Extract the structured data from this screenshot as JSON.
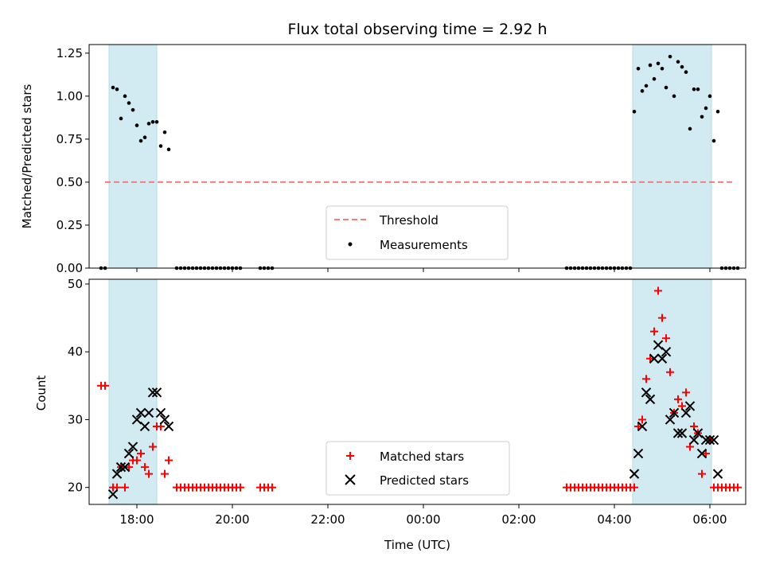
{
  "chart_data": {
    "type": "scatter",
    "title": "Flux total observing time = 2.92 h",
    "xlabel": "Time (UTC)",
    "x_unit": "hours",
    "xlim": [
      "17:00",
      "30:45"
    ],
    "x_tick_labels": [
      "18:00",
      "20:00",
      "22:00",
      "00:00",
      "02:00",
      "04:00",
      "06:00"
    ],
    "x_ticks": [
      "18:00",
      "20:00",
      "22:00",
      "24:00",
      "26:00",
      "28:00",
      "30:00"
    ],
    "shaded_intervals": [
      [
        "17:25",
        "18:25"
      ],
      [
        "28:23",
        "30:02"
      ]
    ],
    "shade_color": "#add8e6",
    "panels": [
      {
        "name": "ratio",
        "ylabel": "Matched/Predicted stars",
        "ylim": [
          0,
          1.3
        ],
        "yticks": [
          0.0,
          0.25,
          0.5,
          0.75,
          1.0,
          1.25
        ],
        "ytick_labels": [
          "0.00",
          "0.25",
          "0.50",
          "0.75",
          "1.00",
          "1.25"
        ],
        "threshold": {
          "label": "Threshold",
          "value": 0.5,
          "x_range": [
            "17:20",
            "30:30"
          ],
          "color": "#f08080"
        },
        "measurements": {
          "label": "Measurements",
          "color": "#000000",
          "points": [
            [
              "17:15",
              0
            ],
            [
              "17:20",
              0
            ],
            [
              "17:30",
              1.05
            ],
            [
              "17:35",
              1.04
            ],
            [
              "17:40",
              0.87
            ],
            [
              "17:45",
              1.0
            ],
            [
              "17:50",
              0.96
            ],
            [
              "17:55",
              0.92
            ],
            [
              "18:00",
              0.83
            ],
            [
              "18:05",
              0.74
            ],
            [
              "18:10",
              0.76
            ],
            [
              "18:15",
              0.84
            ],
            [
              "18:20",
              0.85
            ],
            [
              "18:25",
              0.85
            ],
            [
              "18:30",
              0.71
            ],
            [
              "18:35",
              0.79
            ],
            [
              "18:40",
              0.69
            ],
            [
              "18:50",
              0
            ],
            [
              "18:55",
              0
            ],
            [
              "19:00",
              0
            ],
            [
              "19:05",
              0
            ],
            [
              "19:10",
              0
            ],
            [
              "19:15",
              0
            ],
            [
              "19:20",
              0
            ],
            [
              "19:25",
              0
            ],
            [
              "19:30",
              0
            ],
            [
              "19:35",
              0
            ],
            [
              "19:40",
              0
            ],
            [
              "19:45",
              0
            ],
            [
              "19:50",
              0
            ],
            [
              "19:55",
              0
            ],
            [
              "20:00",
              0
            ],
            [
              "20:05",
              0
            ],
            [
              "20:10",
              0
            ],
            [
              "20:35",
              0
            ],
            [
              "20:40",
              0
            ],
            [
              "20:45",
              0
            ],
            [
              "20:50",
              0
            ],
            [
              "27:00",
              0
            ],
            [
              "27:05",
              0
            ],
            [
              "27:10",
              0
            ],
            [
              "27:15",
              0
            ],
            [
              "27:20",
              0
            ],
            [
              "27:25",
              0
            ],
            [
              "27:30",
              0
            ],
            [
              "27:35",
              0
            ],
            [
              "27:40",
              0
            ],
            [
              "27:45",
              0
            ],
            [
              "27:50",
              0
            ],
            [
              "27:55",
              0
            ],
            [
              "28:00",
              0
            ],
            [
              "28:05",
              0
            ],
            [
              "28:10",
              0
            ],
            [
              "28:15",
              0
            ],
            [
              "28:20",
              0
            ],
            [
              "28:25",
              0.91
            ],
            [
              "28:30",
              1.16
            ],
            [
              "28:35",
              1.03
            ],
            [
              "28:40",
              1.06
            ],
            [
              "28:45",
              1.18
            ],
            [
              "28:50",
              1.1
            ],
            [
              "28:55",
              1.19
            ],
            [
              "29:00",
              1.16
            ],
            [
              "29:05",
              1.05
            ],
            [
              "29:10",
              1.23
            ],
            [
              "29:15",
              1.0
            ],
            [
              "29:20",
              1.2
            ],
            [
              "29:25",
              1.17
            ],
            [
              "29:30",
              1.14
            ],
            [
              "29:35",
              0.81
            ],
            [
              "29:40",
              1.04
            ],
            [
              "29:45",
              1.04
            ],
            [
              "29:50",
              0.88
            ],
            [
              "29:55",
              0.93
            ],
            [
              "30:00",
              1.0
            ],
            [
              "30:05",
              0.74
            ],
            [
              "30:10",
              0.91
            ],
            [
              "30:15",
              0
            ],
            [
              "30:20",
              0
            ],
            [
              "30:25",
              0
            ],
            [
              "30:30",
              0
            ],
            [
              "30:35",
              0
            ]
          ]
        }
      },
      {
        "name": "counts",
        "ylabel": "Count",
        "ylim": [
          17.5,
          50.7
        ],
        "yticks": [
          20,
          30,
          40,
          50
        ],
        "ytick_labels": [
          "20",
          "30",
          "40",
          "50"
        ],
        "series": [
          {
            "name": "Matched stars",
            "marker": "plus",
            "color": "#ff0000",
            "points": [
              [
                "17:15",
                35
              ],
              [
                "17:20",
                35
              ],
              [
                "17:30",
                20
              ],
              [
                "17:35",
                20
              ],
              [
                "17:40",
                23
              ],
              [
                "17:45",
                20
              ],
              [
                "17:50",
                23
              ],
              [
                "17:55",
                24
              ],
              [
                "18:00",
                24
              ],
              [
                "18:05",
                25
              ],
              [
                "18:10",
                23
              ],
              [
                "18:15",
                22
              ],
              [
                "18:20",
                26
              ],
              [
                "18:25",
                29
              ],
              [
                "18:30",
                29
              ],
              [
                "18:35",
                22
              ],
              [
                "18:40",
                24
              ],
              [
                "18:50",
                20
              ],
              [
                "18:55",
                20
              ],
              [
                "19:00",
                20
              ],
              [
                "19:05",
                20
              ],
              [
                "19:10",
                20
              ],
              [
                "19:15",
                20
              ],
              [
                "19:20",
                20
              ],
              [
                "19:25",
                20
              ],
              [
                "19:30",
                20
              ],
              [
                "19:35",
                20
              ],
              [
                "19:40",
                20
              ],
              [
                "19:45",
                20
              ],
              [
                "19:50",
                20
              ],
              [
                "19:55",
                20
              ],
              [
                "20:00",
                20
              ],
              [
                "20:05",
                20
              ],
              [
                "20:10",
                20
              ],
              [
                "20:35",
                20
              ],
              [
                "20:40",
                20
              ],
              [
                "20:45",
                20
              ],
              [
                "20:50",
                20
              ],
              [
                "27:00",
                20
              ],
              [
                "27:05",
                20
              ],
              [
                "27:10",
                20
              ],
              [
                "27:15",
                20
              ],
              [
                "27:20",
                20
              ],
              [
                "27:25",
                20
              ],
              [
                "27:30",
                20
              ],
              [
                "27:35",
                20
              ],
              [
                "27:40",
                20
              ],
              [
                "27:45",
                20
              ],
              [
                "27:50",
                20
              ],
              [
                "27:55",
                20
              ],
              [
                "28:00",
                20
              ],
              [
                "28:05",
                20
              ],
              [
                "28:10",
                20
              ],
              [
                "28:15",
                20
              ],
              [
                "28:20",
                20
              ],
              [
                "28:25",
                20
              ],
              [
                "28:30",
                29
              ],
              [
                "28:35",
                30
              ],
              [
                "28:40",
                36
              ],
              [
                "28:45",
                39
              ],
              [
                "28:50",
                43
              ],
              [
                "28:55",
                49
              ],
              [
                "29:00",
                45
              ],
              [
                "29:05",
                42
              ],
              [
                "29:10",
                37
              ],
              [
                "29:15",
                31
              ],
              [
                "29:20",
                33
              ],
              [
                "29:25",
                32
              ],
              [
                "29:30",
                34
              ],
              [
                "29:35",
                26
              ],
              [
                "29:40",
                29
              ],
              [
                "29:45",
                28
              ],
              [
                "29:50",
                22
              ],
              [
                "29:55",
                25
              ],
              [
                "30:00",
                27
              ],
              [
                "30:05",
                20
              ],
              [
                "30:10",
                20
              ],
              [
                "30:15",
                20
              ],
              [
                "30:20",
                20
              ],
              [
                "30:25",
                20
              ],
              [
                "30:30",
                20
              ],
              [
                "30:35",
                20
              ]
            ]
          },
          {
            "name": "Predicted stars",
            "marker": "x",
            "color": "#000000",
            "points": [
              [
                "17:30",
                19
              ],
              [
                "17:35",
                22
              ],
              [
                "17:40",
                23
              ],
              [
                "17:45",
                23
              ],
              [
                "17:50",
                25
              ],
              [
                "17:55",
                26
              ],
              [
                "18:00",
                30
              ],
              [
                "18:05",
                31
              ],
              [
                "18:10",
                29
              ],
              [
                "18:15",
                31
              ],
              [
                "18:20",
                34
              ],
              [
                "18:25",
                34
              ],
              [
                "18:30",
                31
              ],
              [
                "18:35",
                30
              ],
              [
                "18:40",
                29
              ],
              [
                "28:25",
                22
              ],
              [
                "28:30",
                25
              ],
              [
                "28:35",
                29
              ],
              [
                "28:40",
                34
              ],
              [
                "28:45",
                33
              ],
              [
                "28:50",
                39
              ],
              [
                "28:55",
                41
              ],
              [
                "29:00",
                39
              ],
              [
                "29:05",
                40
              ],
              [
                "29:10",
                30
              ],
              [
                "29:15",
                31
              ],
              [
                "29:20",
                28
              ],
              [
                "29:25",
                28
              ],
              [
                "29:30",
                31
              ],
              [
                "29:35",
                32
              ],
              [
                "29:40",
                27
              ],
              [
                "29:45",
                28
              ],
              [
                "29:50",
                25
              ],
              [
                "29:55",
                27
              ],
              [
                "30:00",
                27
              ],
              [
                "30:05",
                27
              ],
              [
                "30:10",
                22
              ]
            ]
          }
        ]
      }
    ]
  }
}
